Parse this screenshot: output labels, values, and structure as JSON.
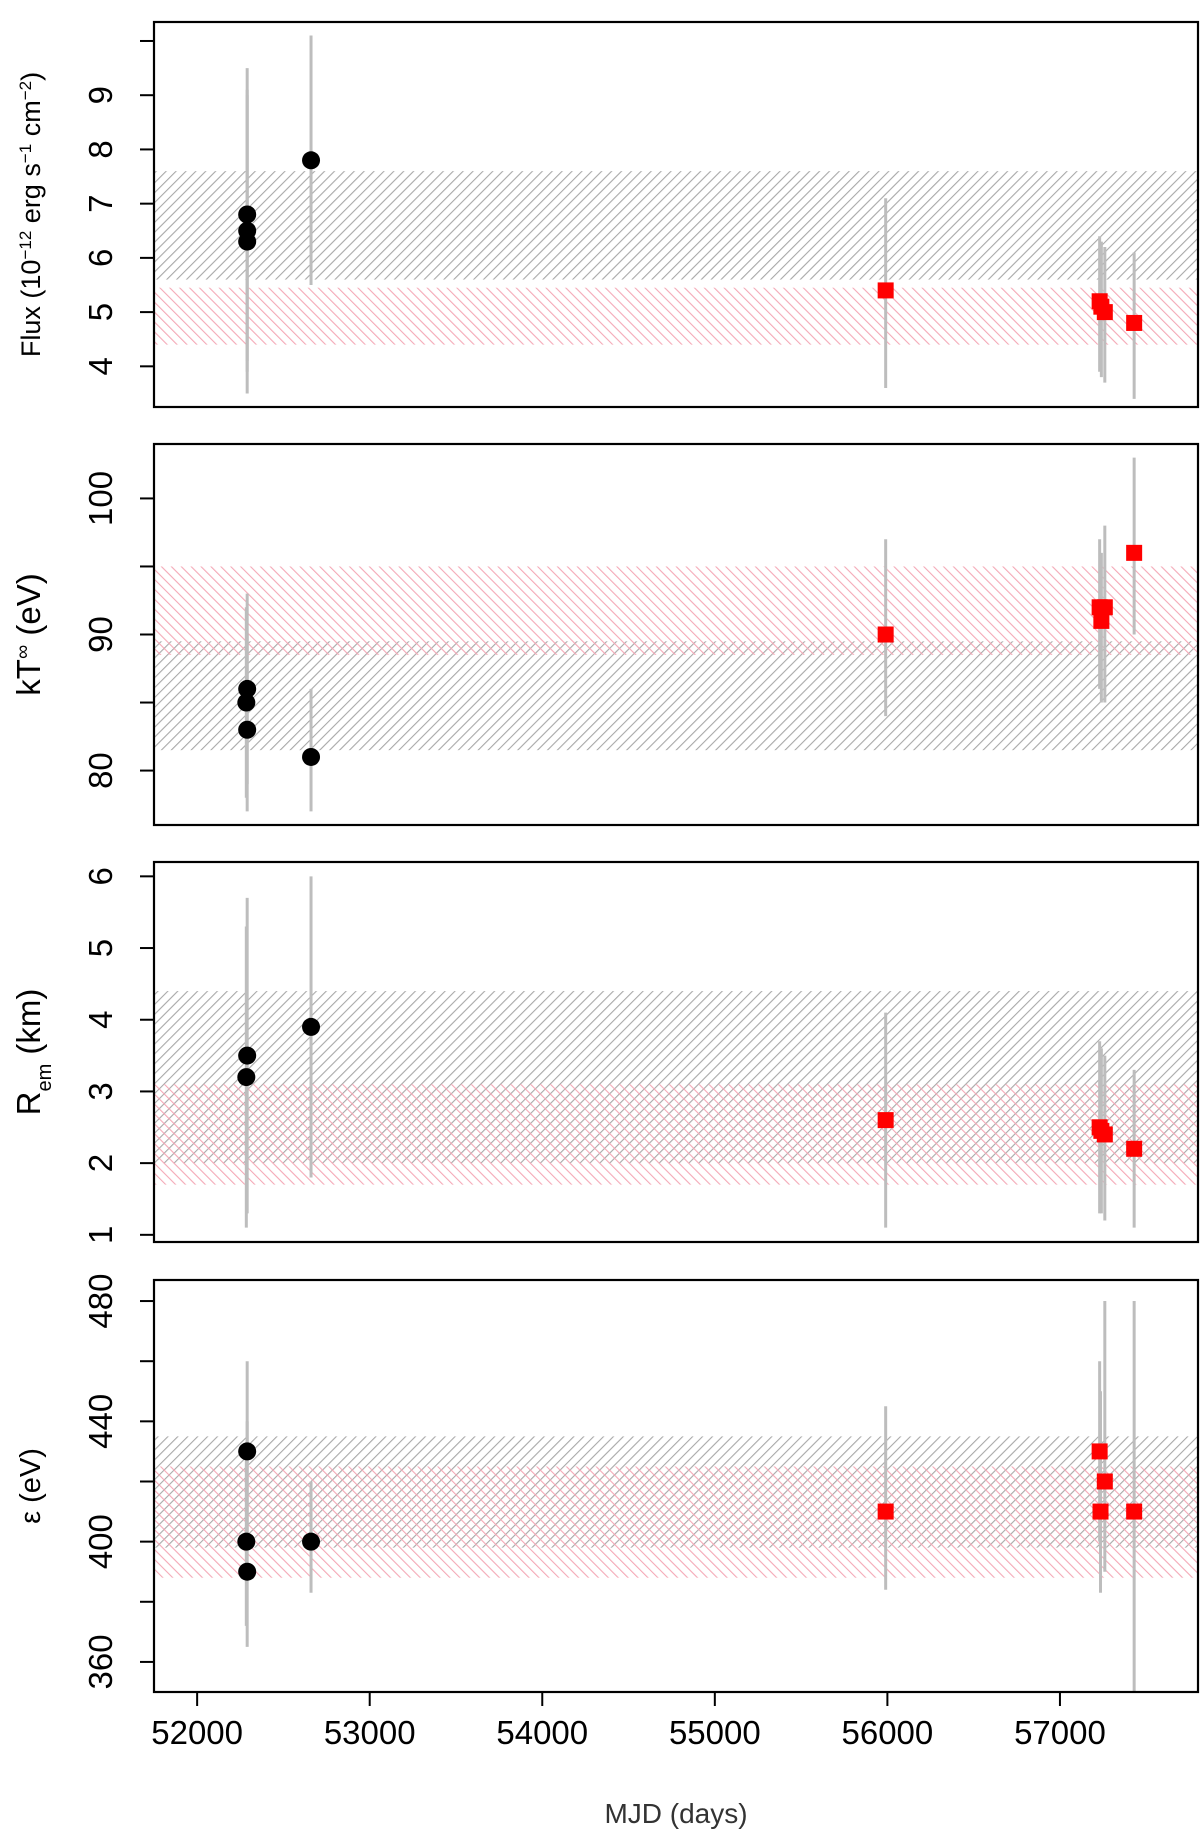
{
  "colors": {
    "group_a": "#000000",
    "group_b": "#ff0000",
    "band_a": "#a8a8a8",
    "band_b": "#f4a8b6",
    "errorbar": "#bdbdbd",
    "axis": "#000000"
  },
  "chart_data": [
    {
      "type": "scatter",
      "id": "flux",
      "ylabel": "Flux (10^-12 erg s^-1 cm^-2)",
      "ylabel_parts": {
        "pre": "Flux (10",
        "sup1": "−12",
        "mid1": " erg s",
        "sup2": "−1",
        "mid2": " cm",
        "sup3": "−2",
        "post": ")"
      },
      "xlim": [
        51750,
        57800
      ],
      "ylim": [
        3.25,
        10.35
      ],
      "yticks": [
        4,
        5,
        6,
        7,
        8,
        9,
        10
      ],
      "ytick_labels": [
        "4",
        "5",
        "6",
        "7",
        "8",
        "9",
        ""
      ],
      "bands": [
        {
          "name": "group_a",
          "y0": 5.6,
          "y1": 7.6
        },
        {
          "name": "group_b",
          "y0": 4.4,
          "y1": 5.45
        }
      ],
      "series": [
        {
          "name": "group_a",
          "marker": "circle",
          "points": [
            {
              "x": 52290,
              "y": 6.8,
              "lo": 4.1,
              "hi": 9.5
            },
            {
              "x": 52290,
              "y": 6.5,
              "lo": 3.9,
              "hi": 9.1
            },
            {
              "x": 52290,
              "y": 6.3,
              "lo": 3.5,
              "hi": 9.0
            },
            {
              "x": 52660,
              "y": 7.8,
              "lo": 5.5,
              "hi": 10.1
            }
          ]
        },
        {
          "name": "group_b",
          "marker": "square",
          "points": [
            {
              "x": 55990,
              "y": 5.4,
              "lo": 3.6,
              "hi": 7.1
            },
            {
              "x": 57230,
              "y": 5.2,
              "lo": 3.9,
              "hi": 6.4
            },
            {
              "x": 57240,
              "y": 5.1,
              "lo": 3.8,
              "hi": 6.3
            },
            {
              "x": 57260,
              "y": 5.0,
              "lo": 3.7,
              "hi": 6.2
            },
            {
              "x": 57430,
              "y": 4.8,
              "lo": 3.4,
              "hi": 6.1
            }
          ]
        }
      ]
    },
    {
      "type": "scatter",
      "id": "kt",
      "ylabel": "kT∞ (eV)",
      "ylabel_parts": {
        "pre": "kT",
        "sup1": "∞",
        "post": " (eV)"
      },
      "xlim": [
        51750,
        57800
      ],
      "ylim": [
        76,
        104
      ],
      "yticks": [
        80,
        85,
        90,
        95,
        100
      ],
      "ytick_labels": [
        "80",
        "",
        "90",
        "",
        "100"
      ],
      "bands": [
        {
          "name": "group_a",
          "y0": 81.5,
          "y1": 89.5
        },
        {
          "name": "group_b",
          "y0": 88.5,
          "y1": 95.0
        }
      ],
      "series": [
        {
          "name": "group_a",
          "marker": "circle",
          "points": [
            {
              "x": 52290,
              "y": 86,
              "lo": 79,
              "hi": 93
            },
            {
              "x": 52285,
              "y": 85,
              "lo": 78,
              "hi": 92
            },
            {
              "x": 52290,
              "y": 83,
              "lo": 77,
              "hi": 90
            },
            {
              "x": 52660,
              "y": 81,
              "lo": 77,
              "hi": 86
            }
          ]
        },
        {
          "name": "group_b",
          "marker": "square",
          "points": [
            {
              "x": 55990,
              "y": 90,
              "lo": 84,
              "hi": 97
            },
            {
              "x": 57230,
              "y": 92,
              "lo": 86,
              "hi": 97
            },
            {
              "x": 57240,
              "y": 91,
              "lo": 85,
              "hi": 96
            },
            {
              "x": 57260,
              "y": 92,
              "lo": 85,
              "hi": 98
            },
            {
              "x": 57430,
              "y": 96,
              "lo": 90,
              "hi": 103
            }
          ]
        }
      ]
    },
    {
      "type": "scatter",
      "id": "rem",
      "ylabel": "Rem (km)",
      "ylabel_parts": {
        "pre": "R",
        "sub1": "em",
        "post": " (km)"
      },
      "xlim": [
        51750,
        57800
      ],
      "ylim": [
        0.9,
        6.2
      ],
      "yticks": [
        1,
        2,
        3,
        4,
        5,
        6
      ],
      "ytick_labels": [
        "1",
        "2",
        "3",
        "4",
        "5",
        "6"
      ],
      "bands": [
        {
          "name": "group_a",
          "y0": 2.0,
          "y1": 4.4
        },
        {
          "name": "group_b",
          "y0": 1.7,
          "y1": 3.1
        }
      ],
      "series": [
        {
          "name": "group_a",
          "marker": "circle",
          "points": [
            {
              "x": 52290,
              "y": 3.5,
              "lo": 1.3,
              "hi": 5.7
            },
            {
              "x": 52285,
              "y": 3.2,
              "lo": 1.1,
              "hi": 5.3
            },
            {
              "x": 52660,
              "y": 3.9,
              "lo": 1.8,
              "hi": 6.0
            }
          ]
        },
        {
          "name": "group_b",
          "marker": "square",
          "points": [
            {
              "x": 55990,
              "y": 2.6,
              "lo": 1.1,
              "hi": 4.1
            },
            {
              "x": 57230,
              "y": 2.5,
              "lo": 1.3,
              "hi": 3.7
            },
            {
              "x": 57240,
              "y": 2.45,
              "lo": 1.3,
              "hi": 3.6
            },
            {
              "x": 57260,
              "y": 2.4,
              "lo": 1.2,
              "hi": 3.5
            },
            {
              "x": 57430,
              "y": 2.2,
              "lo": 1.1,
              "hi": 3.3
            }
          ]
        }
      ]
    },
    {
      "type": "scatter",
      "id": "eps",
      "ylabel": "ε (eV)",
      "ylabel_parts": {
        "pre": "ε (eV)"
      },
      "xlim": [
        51750,
        57800
      ],
      "ylim": [
        350,
        487
      ],
      "yticks": [
        360,
        380,
        400,
        420,
        440,
        460,
        480
      ],
      "ytick_labels": [
        "360",
        "",
        "400",
        "",
        "440",
        "",
        "480"
      ],
      "xticks": [
        52000,
        53000,
        54000,
        55000,
        56000,
        57000
      ],
      "xtick_labels": [
        "52000",
        "53000",
        "54000",
        "55000",
        "56000",
        "57000"
      ],
      "xlabel": "MJD (days)",
      "bands": [
        {
          "name": "group_a",
          "y0": 398,
          "y1": 435
        },
        {
          "name": "group_b",
          "y0": 388,
          "y1": 425
        }
      ],
      "series": [
        {
          "name": "group_a",
          "marker": "circle",
          "points": [
            {
              "x": 52290,
              "y": 430,
              "lo": 400,
              "hi": 460
            },
            {
              "x": 52285,
              "y": 400,
              "lo": 372,
              "hi": 428
            },
            {
              "x": 52290,
              "y": 390,
              "lo": 365,
              "hi": 440
            },
            {
              "x": 52660,
              "y": 400,
              "lo": 383,
              "hi": 420
            }
          ]
        },
        {
          "name": "group_b",
          "marker": "square",
          "points": [
            {
              "x": 55990,
              "y": 410,
              "lo": 384,
              "hi": 445
            },
            {
              "x": 57230,
              "y": 430,
              "lo": 400,
              "hi": 460
            },
            {
              "x": 57235,
              "y": 410,
              "lo": 383,
              "hi": 450
            },
            {
              "x": 57260,
              "y": 420,
              "lo": 390,
              "hi": 480
            },
            {
              "x": 57430,
              "y": 410,
              "lo": 350,
              "hi": 480
            }
          ]
        }
      ]
    }
  ]
}
